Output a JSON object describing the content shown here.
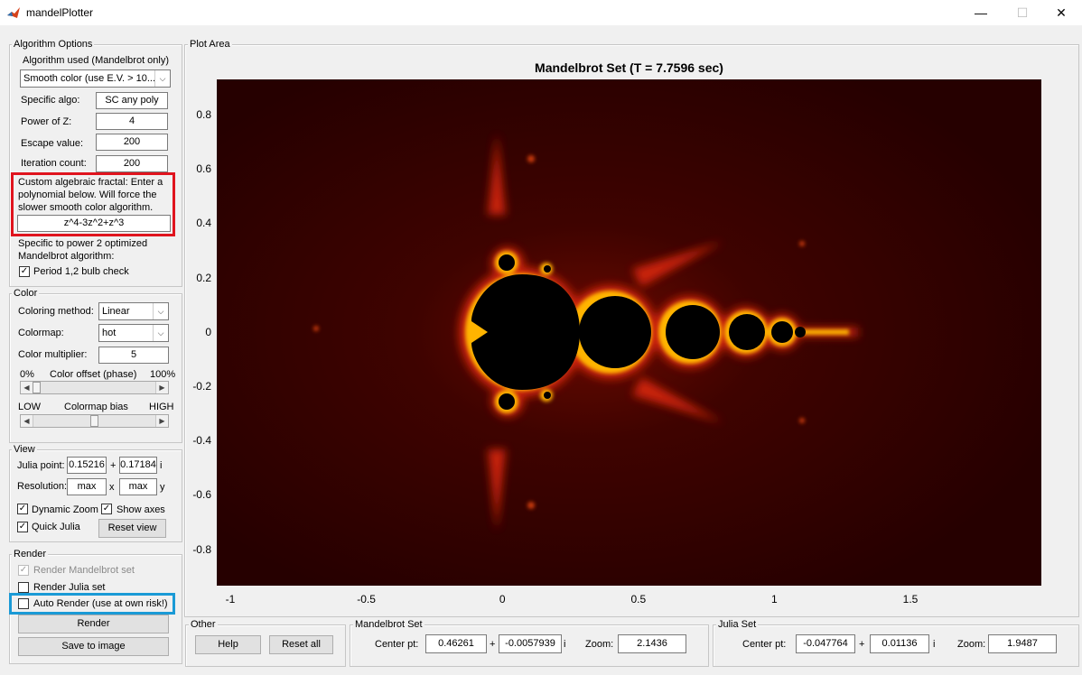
{
  "window": {
    "title": "mandelPlotter",
    "minimize": "—",
    "maximize": "☐",
    "close": "✕"
  },
  "algorithm": {
    "legend": "Algorithm Options",
    "used_label": "Algorithm used (Mandelbrot only)",
    "used_value": "Smooth color (use E.V. > 10...",
    "specific_label": "Specific algo:",
    "specific_value": "SC any poly",
    "power_label": "Power of Z:",
    "power_value": "4",
    "escape_label": "Escape value:",
    "escape_value": "200",
    "iter_label": "Iteration count:",
    "iter_value": "200",
    "custom_line1": "Custom algebraic fractal: Enter a",
    "custom_line2": "polynomial below. Will force the",
    "custom_line3": "slower smooth color algorithm.",
    "custom_value": "z^4-3z^2+z^3",
    "specific2_line1": "Specific to power 2 optimized",
    "specific2_line2": "Mandelbrot algorithm:",
    "bulb_label": "Period 1,2 bulb check",
    "bulb_checked": "✓"
  },
  "color": {
    "legend": "Color",
    "method_label": "Coloring method:",
    "method_value": "Linear",
    "colormap_label": "Colormap:",
    "colormap_value": "hot",
    "mult_label": "Color multiplier:",
    "mult_value": "5",
    "offset_min": "0%",
    "offset_label": "Color offset (phase)",
    "offset_max": "100%",
    "offset_level": 0.0,
    "bias_min": "LOW",
    "bias_label": "Colormap bias",
    "bias_max": "HIGH",
    "bias_level": 0.5
  },
  "view": {
    "legend": "View",
    "julia_label": "Julia point:",
    "julia_re": "0.15216",
    "plus": "+",
    "julia_im": "0.17184",
    "i_suffix": "i",
    "res_label": "Resolution:",
    "res_x": "max",
    "x_sep": "x",
    "res_y": "max",
    "y_suffix": "y",
    "dyn_zoom": "Dynamic Zoom",
    "show_axes": "Show axes",
    "quick_julia": "Quick Julia",
    "reset_view": "Reset view",
    "check": "✓"
  },
  "render": {
    "legend": "Render",
    "render_mandel": "Render Mandelbrot set",
    "render_julia": "Render Julia set",
    "auto_render": "Auto Render (use at own risk!)",
    "render_btn": "Render",
    "save_btn": "Save to image",
    "check": "✓"
  },
  "plot": {
    "legend": "Plot Area",
    "title": "Mandelbrot Set (T = 7.7596 sec)",
    "y_ticks": [
      "0.8",
      "0.6",
      "0.4",
      "0.2",
      "0",
      "-0.2",
      "-0.4",
      "-0.6",
      "-0.8"
    ],
    "x_ticks": [
      "-1",
      "-0.5",
      "0",
      "0.5",
      "1",
      "1.5"
    ]
  },
  "other": {
    "legend": "Other",
    "help": "Help",
    "reset_all": "Reset all"
  },
  "mandel_set": {
    "legend": "Mandelbrot Set",
    "center_label": "Center pt:",
    "re": "0.46261",
    "plus": "+",
    "im": "-0.0057939",
    "i_suffix": "i",
    "zoom_label": "Zoom:",
    "zoom": "2.1436"
  },
  "julia_set": {
    "legend": "Julia Set",
    "center_label": "Center pt:",
    "re": "-0.047764",
    "plus": "+",
    "im": "0.01136",
    "i_suffix": "i",
    "zoom_label": "Zoom:",
    "zoom": "1.9487"
  },
  "colors": {
    "highlight_red": "#e0141e",
    "highlight_blue": "#1a9ad6",
    "plot_bg": "#2a0000"
  }
}
